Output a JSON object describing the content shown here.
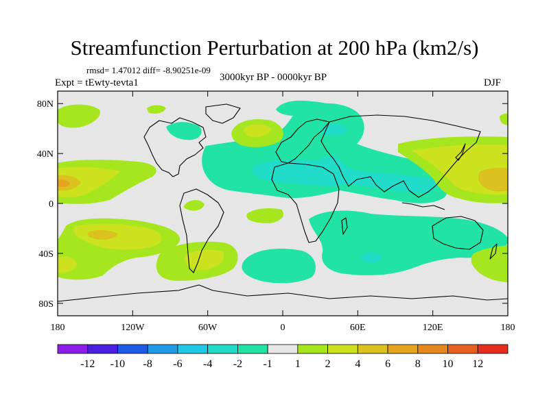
{
  "figure": {
    "title": "Streamfunction Perturbation at 200 hPa (km2/s)",
    "stats": "rmsd= 1.47012 diff= -8.90251e-09",
    "experiment": "Expt = tEwty-tevta1",
    "period": "3000kyr BP - 0000kyr BP",
    "season": "DJF"
  },
  "axes": {
    "lat_ticks": [
      {
        "value": 80,
        "label": "80N"
      },
      {
        "value": 40,
        "label": "40N"
      },
      {
        "value": 0,
        "label": "0"
      },
      {
        "value": -40,
        "label": "40S"
      },
      {
        "value": -80,
        "label": "80S"
      }
    ],
    "lon_ticks": [
      {
        "value": -180,
        "label": "180"
      },
      {
        "value": -120,
        "label": "120W"
      },
      {
        "value": -60,
        "label": "60W"
      },
      {
        "value": 0,
        "label": "0"
      },
      {
        "value": 60,
        "label": "60E"
      },
      {
        "value": 120,
        "label": "120E"
      },
      {
        "value": 180,
        "label": "180"
      }
    ],
    "lon_range": [
      -180,
      180
    ],
    "lat_range": [
      -90,
      90
    ]
  },
  "colorbar": {
    "colors": [
      "#8a1de6",
      "#4a1fe0",
      "#1f5ae6",
      "#1f9be6",
      "#1fc8e6",
      "#20dcc8",
      "#20e3a5",
      "#e6e6e6",
      "#a6e61e",
      "#cde21f",
      "#dcc21f",
      "#e6a51e",
      "#e6861e",
      "#e6611e",
      "#e62e1e"
    ],
    "labels": [
      "-12",
      "-10",
      "-8",
      "-6",
      "-4",
      "-2",
      "-1",
      "1",
      "2",
      "4",
      "6",
      "8",
      "10",
      "12"
    ]
  },
  "colors": {
    "background": "#e6e6e6",
    "neg1": "#20e3a5",
    "neg2": "#20dcc8",
    "pos1": "#a6e61e",
    "pos2": "#cde21f",
    "pos3": "#dcc21f",
    "pos4": "#e6a51e",
    "coast": "#000000"
  }
}
